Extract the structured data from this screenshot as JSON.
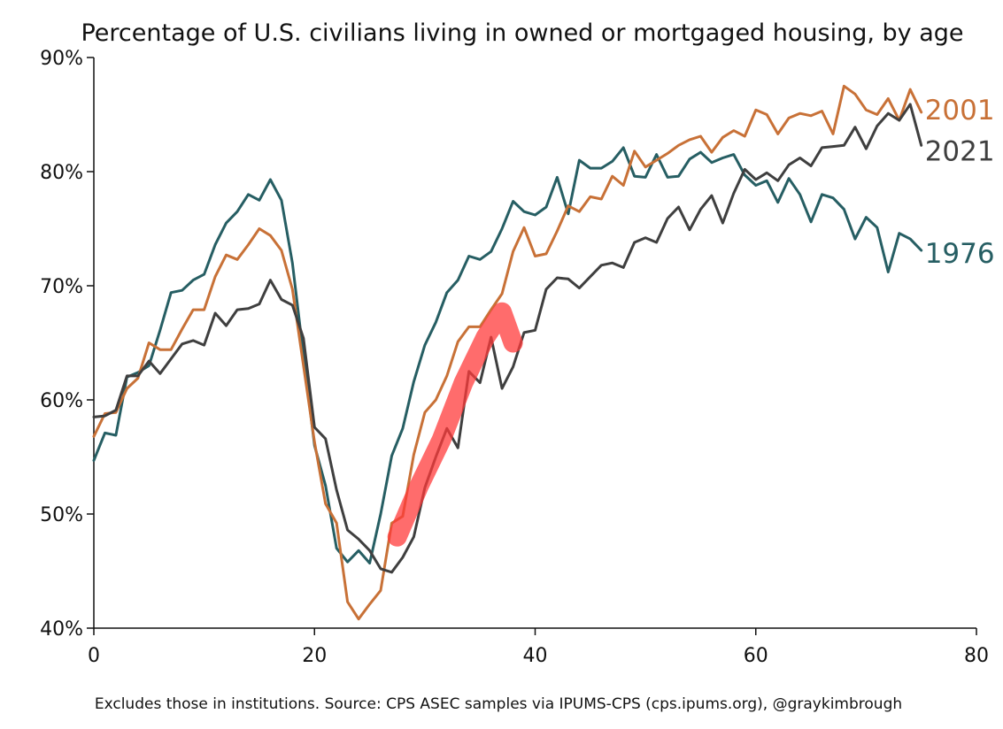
{
  "chart_data": {
    "type": "line",
    "title": "Percentage of U.S. civilians living in owned or mortgaged housing, by age",
    "xlabel": "",
    "ylabel": "",
    "xlim": [
      0,
      80
    ],
    "ylim": [
      40,
      90
    ],
    "x_ticks": [
      0,
      20,
      40,
      60,
      80
    ],
    "y_ticks": [
      40,
      50,
      60,
      70,
      80,
      90
    ],
    "y_tick_labels": [
      "40%",
      "50%",
      "60%",
      "70%",
      "80%",
      "90%"
    ],
    "grid": false,
    "legend": "direct labels at right end of each line",
    "caption": "Excludes those in institutions. Source: CPS ASEC samples via IPUMS-CPS (cps.ipums.org), @graykimbrough",
    "series": [
      {
        "name": "1976",
        "color": "#265e63",
        "x": [
          0,
          1,
          2,
          3,
          4,
          5,
          6,
          7,
          8,
          9,
          10,
          11,
          12,
          13,
          14,
          15,
          16,
          17,
          18,
          19,
          20,
          21,
          22,
          23,
          24,
          25,
          26,
          27,
          28,
          29,
          30,
          31,
          32,
          33,
          34,
          35,
          36,
          37,
          38,
          39,
          40,
          41,
          42,
          43,
          44,
          45,
          46,
          47,
          48,
          49,
          50,
          51,
          52,
          53,
          54,
          55,
          56,
          57,
          58,
          59,
          60,
          61,
          62,
          63,
          64,
          65,
          66,
          67,
          68,
          69,
          70,
          71,
          72,
          73,
          74,
          75
        ],
        "values": [
          54.7,
          57.1,
          56.9,
          62.0,
          62.4,
          63.0,
          66.1,
          69.4,
          69.6,
          70.5,
          71.0,
          73.6,
          75.5,
          76.5,
          78.0,
          77.5,
          79.3,
          77.5,
          72.0,
          63.9,
          56.0,
          52.5,
          47.0,
          45.8,
          46.8,
          45.7,
          50.0,
          55.1,
          57.5,
          61.6,
          64.8,
          66.8,
          69.4,
          70.5,
          72.6,
          72.3,
          73.0,
          75.0,
          77.4,
          76.5,
          76.2,
          76.9,
          79.5,
          76.3,
          81.0,
          80.3,
          80.3,
          80.9,
          82.1,
          79.6,
          79.5,
          81.5,
          79.5,
          79.6,
          81.1,
          81.7,
          80.8,
          81.2,
          81.5,
          79.7,
          78.8,
          79.2,
          77.3,
          79.4,
          78.0,
          75.6,
          78.0,
          77.7,
          76.7,
          74.1,
          76.0,
          75.1,
          71.2,
          74.6,
          74.1,
          73.1
        ]
      },
      {
        "name": "2001",
        "color": "#c87137",
        "x": [
          0,
          1,
          2,
          3,
          4,
          5,
          6,
          7,
          8,
          9,
          10,
          11,
          12,
          13,
          14,
          15,
          16,
          17,
          18,
          19,
          20,
          21,
          22,
          23,
          24,
          25,
          26,
          27,
          28,
          29,
          30,
          31,
          32,
          33,
          34,
          35,
          36,
          37,
          38,
          39,
          40,
          41,
          42,
          43,
          44,
          45,
          46,
          47,
          48,
          49,
          50,
          51,
          52,
          53,
          54,
          55,
          56,
          57,
          58,
          59,
          60,
          61,
          62,
          63,
          64,
          65,
          66,
          67,
          68,
          69,
          70,
          71,
          72,
          73,
          74,
          75
        ],
        "values": [
          56.8,
          58.8,
          58.9,
          61.0,
          61.9,
          65.0,
          64.4,
          64.4,
          66.2,
          67.9,
          67.9,
          70.8,
          72.7,
          72.3,
          73.6,
          75.0,
          74.4,
          73.1,
          69.7,
          63.0,
          56.3,
          50.9,
          49.2,
          42.3,
          40.8,
          42.1,
          43.3,
          49.2,
          49.8,
          55.2,
          58.9,
          60.0,
          62.1,
          65.1,
          66.4,
          66.4,
          67.9,
          69.3,
          73.0,
          75.1,
          72.6,
          72.8,
          74.8,
          77.0,
          76.5,
          77.8,
          77.6,
          79.6,
          78.8,
          81.8,
          80.4,
          81.0,
          81.6,
          82.3,
          82.8,
          83.1,
          81.7,
          83.0,
          83.6,
          83.1,
          85.4,
          85.0,
          83.3,
          84.7,
          85.1,
          84.9,
          85.3,
          83.3,
          87.5,
          86.8,
          85.4,
          85.0,
          86.4,
          84.5,
          87.2,
          85.2
        ]
      },
      {
        "name": "2021",
        "color": "#3f3f3f",
        "x": [
          0,
          1,
          2,
          3,
          4,
          5,
          6,
          7,
          8,
          9,
          10,
          11,
          12,
          13,
          14,
          15,
          16,
          17,
          18,
          19,
          20,
          21,
          22,
          23,
          24,
          25,
          26,
          27,
          28,
          29,
          30,
          31,
          32,
          33,
          34,
          35,
          36,
          37,
          38,
          39,
          40,
          41,
          42,
          43,
          44,
          45,
          46,
          47,
          48,
          49,
          50,
          51,
          52,
          53,
          54,
          55,
          56,
          57,
          58,
          59,
          60,
          61,
          62,
          63,
          64,
          65,
          66,
          67,
          68,
          69,
          70,
          71,
          72,
          73,
          74,
          75
        ],
        "values": [
          58.5,
          58.6,
          59.1,
          62.1,
          62.1,
          63.4,
          62.3,
          63.6,
          64.9,
          65.2,
          64.8,
          67.6,
          66.5,
          67.9,
          68.0,
          68.4,
          70.5,
          68.8,
          68.3,
          65.4,
          57.6,
          56.6,
          52.1,
          48.6,
          47.8,
          46.8,
          45.2,
          44.9,
          46.2,
          48.0,
          52.3,
          55.0,
          57.5,
          55.8,
          62.5,
          61.5,
          65.5,
          61.0,
          62.9,
          65.9,
          66.1,
          69.7,
          70.7,
          70.6,
          69.8,
          70.8,
          71.8,
          72.0,
          71.6,
          73.8,
          74.2,
          73.8,
          75.9,
          76.9,
          74.9,
          76.7,
          77.9,
          75.5,
          78.1,
          80.2,
          79.3,
          79.9,
          79.2,
          80.6,
          81.2,
          80.5,
          82.1,
          82.2,
          82.3,
          83.9,
          82.0,
          84.0,
          85.1,
          84.5,
          85.9,
          82.3
        ]
      }
    ],
    "annotation": {
      "color": "#ff3b3b",
      "path_x": [
        27.5,
        29.5,
        31.5,
        33.5,
        35.5,
        37.0,
        38.0
      ],
      "path_y": [
        48.0,
        52.5,
        56.5,
        61.5,
        65.5,
        67.7,
        65.0
      ]
    }
  }
}
